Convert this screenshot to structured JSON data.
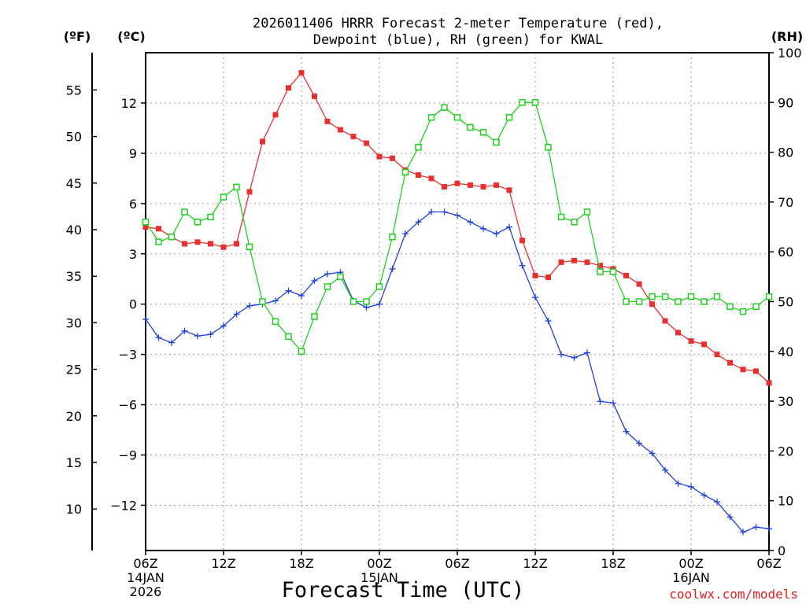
{
  "chart_data": {
    "type": "line",
    "title_line1": "2026011406 HRRR Forecast 2-meter Temperature (red),",
    "title_line2": "Dewpoint (blue), RH (green) for KWAL",
    "xlabel": "Forecast Time (UTC)",
    "credit": "coolwx.com/models",
    "left_unit_f": "(ºF)",
    "left_unit_c": "(ºC)",
    "right_unit": "(RH)",
    "x_start_hour": 0,
    "x_end_hour": 48,
    "x_ticks": [
      {
        "hour": 0,
        "label": "06Z",
        "date": "14JAN",
        "year": "2026"
      },
      {
        "hour": 6,
        "label": "12Z",
        "date": "",
        "year": ""
      },
      {
        "hour": 12,
        "label": "18Z",
        "date": "",
        "year": ""
      },
      {
        "hour": 18,
        "label": "00Z",
        "date": "15JAN",
        "year": ""
      },
      {
        "hour": 24,
        "label": "06Z",
        "date": "",
        "year": ""
      },
      {
        "hour": 30,
        "label": "12Z",
        "date": "",
        "year": ""
      },
      {
        "hour": 36,
        "label": "18Z",
        "date": "",
        "year": ""
      },
      {
        "hour": 42,
        "label": "00Z",
        "date": "16JAN",
        "year": ""
      },
      {
        "hour": 48,
        "label": "06Z",
        "date": "",
        "year": ""
      }
    ],
    "c_axis": {
      "min": -14.7,
      "max": 15
    },
    "c_ticks": [
      {
        "value": 12,
        "label": "12"
      },
      {
        "value": 9,
        "label": "9"
      },
      {
        "value": 6,
        "label": "6"
      },
      {
        "value": 3,
        "label": "3"
      },
      {
        "value": 0,
        "label": "0"
      },
      {
        "value": -3,
        "label": "−3"
      },
      {
        "value": -6,
        "label": "−6"
      },
      {
        "value": -9,
        "label": "−9"
      },
      {
        "value": -12,
        "label": "−12"
      }
    ],
    "f_ticks": [
      {
        "value": 55,
        "label": "55"
      },
      {
        "value": 50,
        "label": "50"
      },
      {
        "value": 45,
        "label": "45"
      },
      {
        "value": 40,
        "label": "40"
      },
      {
        "value": 35,
        "label": "35"
      },
      {
        "value": 30,
        "label": "30"
      },
      {
        "value": 25,
        "label": "25"
      },
      {
        "value": 20,
        "label": "20"
      },
      {
        "value": 15,
        "label": "15"
      },
      {
        "value": 10,
        "label": "10"
      }
    ],
    "rh_axis": {
      "min": 0,
      "max": 100
    },
    "rh_ticks": [
      {
        "value": 100,
        "label": "100"
      },
      {
        "value": 90,
        "label": "90"
      },
      {
        "value": 80,
        "label": "80"
      },
      {
        "value": 70,
        "label": "70"
      },
      {
        "value": 60,
        "label": "60"
      },
      {
        "value": 50,
        "label": "50"
      },
      {
        "value": 40,
        "label": "40"
      },
      {
        "value": 30,
        "label": "30"
      },
      {
        "value": 20,
        "label": "20"
      },
      {
        "value": 10,
        "label": "10"
      },
      {
        "value": 0,
        "label": "0"
      }
    ],
    "series": [
      {
        "name": "Temperature",
        "axis": "c",
        "color": "#e83030",
        "marker": "filled-square",
        "values": [
          4.6,
          4.5,
          4.0,
          3.6,
          3.7,
          3.6,
          3.4,
          3.6,
          6.7,
          9.7,
          11.3,
          12.9,
          13.8,
          12.4,
          10.9,
          10.4,
          10.0,
          9.6,
          8.8,
          8.7,
          8.0,
          7.7,
          7.5,
          7.0,
          7.2,
          7.1,
          7.0,
          7.1,
          6.8,
          3.8,
          1.7,
          1.6,
          2.5,
          2.6,
          2.5,
          2.3,
          2.1,
          1.7,
          1.2,
          0.0,
          -1.0,
          -1.7,
          -2.2,
          -2.4,
          -3.0,
          -3.5,
          -3.9,
          -4.0,
          -4.7
        ]
      },
      {
        "name": "Dewpoint",
        "axis": "c",
        "color": "#2040e0",
        "marker": "plus",
        "values": [
          -0.9,
          -2.0,
          -2.3,
          -1.6,
          -1.9,
          -1.8,
          -1.3,
          -0.6,
          -0.1,
          0.0,
          0.2,
          0.8,
          0.5,
          1.4,
          1.8,
          1.9,
          0.2,
          -0.2,
          0.0,
          2.1,
          4.2,
          4.9,
          5.5,
          5.5,
          5.3,
          4.9,
          4.5,
          4.2,
          4.6,
          2.3,
          0.4,
          -1.0,
          -3.0,
          -3.2,
          -2.9,
          -5.8,
          -5.9,
          -7.6,
          -8.3,
          -8.9,
          -9.9,
          -10.7,
          -10.9,
          -11.4,
          -11.8,
          -12.7,
          -13.6,
          -13.3,
          -13.4
        ]
      },
      {
        "name": "RH",
        "axis": "rh",
        "color": "#20d020",
        "marker": "open-square",
        "values": [
          66,
          62,
          63,
          68,
          66,
          67,
          71,
          73,
          61,
          50,
          46,
          43,
          40,
          47,
          53,
          55,
          50,
          50,
          53,
          63,
          76,
          81,
          87,
          89,
          87,
          85,
          84,
          82,
          87,
          90,
          90,
          81,
          67,
          66,
          68,
          56,
          56,
          50,
          50,
          51,
          51,
          50,
          51,
          50,
          51,
          49,
          48,
          49,
          51
        ]
      }
    ]
  }
}
